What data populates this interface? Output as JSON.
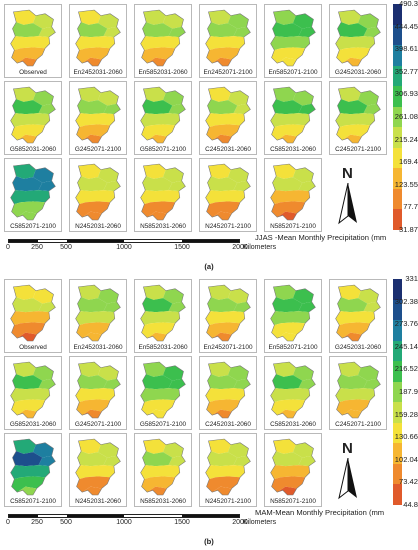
{
  "panels": [
    {
      "id": "a",
      "letter": "(a)",
      "caption": "JJAS -Mean Monthly Precipitation (mm",
      "legend_ticks": [
        "490.3",
        "444.45",
        "398.61",
        "352.77",
        "306.93",
        "261.08",
        "215.24",
        "169.4",
        "123.55",
        "77.7",
        "31.87"
      ],
      "maps": [
        {
          "label": "Observed",
          "level": 0.32
        },
        {
          "label": "En2452031-2060",
          "level": 0.34
        },
        {
          "label": "En5852031-2060",
          "level": 0.36
        },
        {
          "label": "En2452071-2100",
          "level": 0.38
        },
        {
          "label": "En5852071-2100",
          "level": 0.5
        },
        {
          "label": "G2452031-2060",
          "level": 0.44
        },
        {
          "label": "G5852031-2060",
          "level": 0.42
        },
        {
          "label": "G2452071-2100",
          "level": 0.36
        },
        {
          "label": "G5852071-2100",
          "level": 0.42
        },
        {
          "label": "C2452031-2060",
          "level": 0.34
        },
        {
          "label": "C5852031-2060",
          "level": 0.46
        },
        {
          "label": "C2452071-2100",
          "level": 0.42
        },
        {
          "label": "C5852071-2100",
          "level": 0.7
        },
        {
          "label": "N2452031-2060",
          "level": 0.3
        },
        {
          "label": "N5852031-2060",
          "level": 0.3
        },
        {
          "label": "N2452071-2100",
          "level": 0.3
        },
        {
          "label": "N5852071-2100",
          "level": 0.28
        }
      ]
    },
    {
      "id": "b",
      "letter": "(b)",
      "caption": "MAM-Mean Monthly Precipitation (mm",
      "legend_ticks": [
        "331",
        "302.38",
        "273.76",
        "245.14",
        "216.52",
        "187.9",
        "159.28",
        "130.66",
        "102.04",
        "73.42",
        "44.8"
      ],
      "maps": [
        {
          "label": "Observed",
          "level": 0.26
        },
        {
          "label": "En2452031-2060",
          "level": 0.4
        },
        {
          "label": "En5852031-2060",
          "level": 0.42
        },
        {
          "label": "En2452071-2100",
          "level": 0.36
        },
        {
          "label": "En5852071-2100",
          "level": 0.5
        },
        {
          "label": "G2452031-2060",
          "level": 0.34
        },
        {
          "label": "G5852031-2060",
          "level": 0.42
        },
        {
          "label": "G2452071-2100",
          "level": 0.36
        },
        {
          "label": "G5852071-2100",
          "level": 0.5
        },
        {
          "label": "C2452031-2060",
          "level": 0.38
        },
        {
          "label": "C5852031-2060",
          "level": 0.42
        },
        {
          "label": "C2452071-2100",
          "level": 0.4
        },
        {
          "label": "C5852071-2100",
          "level": 0.72
        },
        {
          "label": "N2452031-2060",
          "level": 0.3
        },
        {
          "label": "N5852031-2060",
          "level": 0.32
        },
        {
          "label": "N2452071-2100",
          "level": 0.3
        },
        {
          "label": "N5852071-2100",
          "level": 0.28
        }
      ]
    }
  ],
  "north_label": "N",
  "scale": {
    "ticks": [
      "0",
      "250",
      "500",
      "1000",
      "1500",
      "2000"
    ],
    "unit": "Kilometers"
  },
  "colors": {
    "ramp": [
      "#e05a2b",
      "#ef8a2e",
      "#f6b632",
      "#f4e13a",
      "#c9e04a",
      "#8fd64f",
      "#3cbf4e",
      "#23a977",
      "#1e7fa0",
      "#1d4f8c",
      "#1b2f70"
    ],
    "tile_border": "#b9b9b9"
  }
}
